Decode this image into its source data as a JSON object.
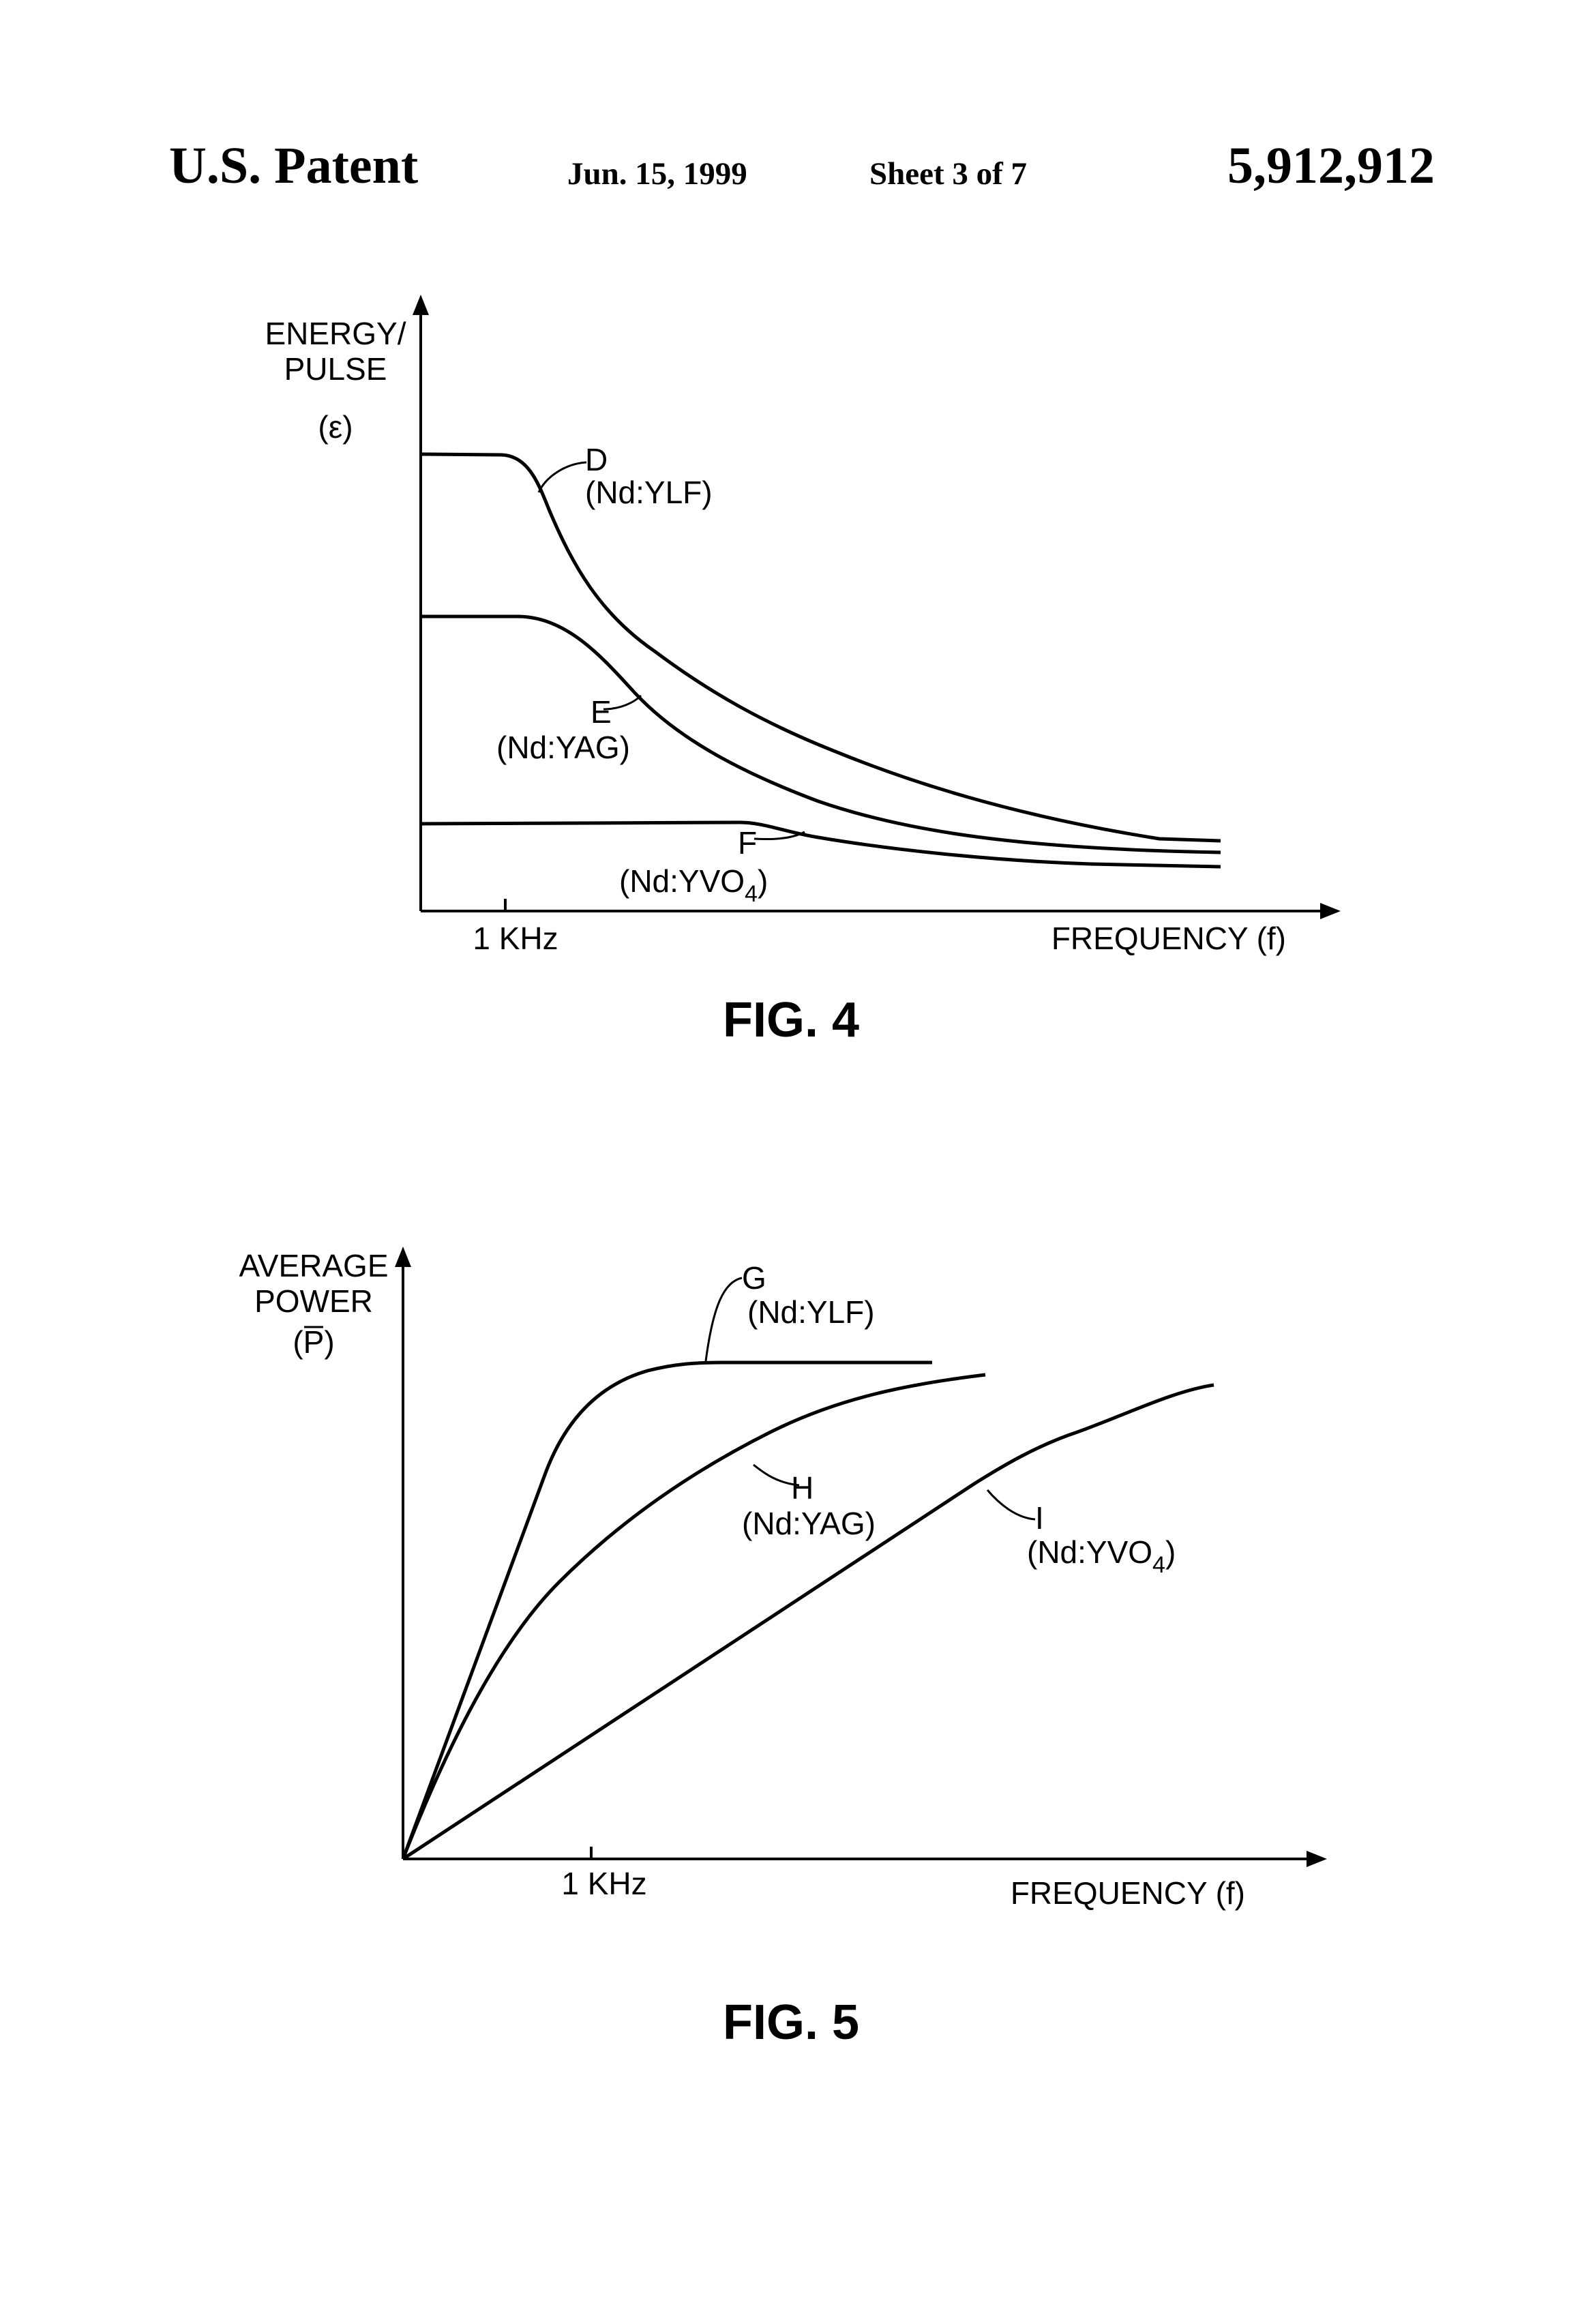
{
  "header": {
    "left": "U.S. Patent",
    "date": "Jun. 15, 1999",
    "sheet": "Sheet 3 of 7",
    "number": "5,912,912"
  },
  "figures": [
    {
      "caption": "FIG. 4",
      "ylabel_lines": [
        "ENERGY/",
        "PULSE",
        "(ε)"
      ],
      "xlabel": "FREQUENCY (f)",
      "x_tick": "1 KHz",
      "curves": [
        {
          "letter": "D",
          "material": "(Nd:YLF)"
        },
        {
          "letter": "E",
          "material": "(Nd:YAG)"
        },
        {
          "letter": "F",
          "material_main": "(Nd:YVO",
          "material_sub": "4",
          "material_close": ")"
        }
      ]
    },
    {
      "caption": "FIG. 5",
      "ylabel_lines": [
        "AVERAGE",
        "POWER",
        "(P)"
      ],
      "xlabel": "FREQUENCY (f)",
      "x_tick": "1 KHz",
      "curves": [
        {
          "letter": "G",
          "material": "(Nd:YLF)"
        },
        {
          "letter": "H",
          "material": "(Nd:YAG)"
        },
        {
          "letter": "I",
          "material_main": "(Nd:YVO",
          "material_sub": "4",
          "material_close": ")"
        }
      ]
    }
  ],
  "chart_data": [
    {
      "type": "line",
      "title": "FIG. 4",
      "xlabel": "FREQUENCY (f)",
      "ylabel": "ENERGY/ PULSE (ε)",
      "x_ticks": [
        "1 KHz"
      ],
      "series": [
        {
          "name": "D (Nd:YLF)"
        },
        {
          "name": "E (Nd:YAG)"
        },
        {
          "name": "F (Nd:YVO4)"
        }
      ]
    },
    {
      "type": "line",
      "title": "FIG. 5",
      "xlabel": "FREQUENCY (f)",
      "ylabel": "AVERAGE POWER (P)",
      "x_ticks": [
        "1 KHz"
      ],
      "series": [
        {
          "name": "G (Nd:YLF)"
        },
        {
          "name": "H (Nd:YAG)"
        },
        {
          "name": "I (Nd:YVO4)"
        }
      ]
    }
  ]
}
